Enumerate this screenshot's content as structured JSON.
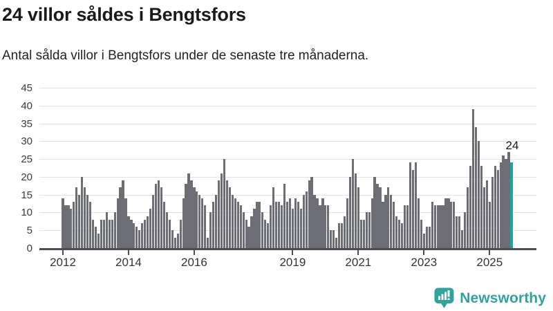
{
  "header": {
    "title": "24 villor såldes i Bengtsfors",
    "subtitle": "Antal sålda villor i Bengtsfors under de senaste tre månaderna."
  },
  "chart_data": {
    "type": "bar",
    "title": "24 villor såldes i Bengtsfors",
    "xlabel": "",
    "ylabel": "",
    "x_start_month": "2012-01",
    "x_frequency": "monthly",
    "values": [
      14,
      12,
      12,
      11,
      13,
      17,
      15,
      20,
      17,
      15,
      13,
      8,
      6,
      4,
      8,
      8,
      10,
      8,
      8,
      10,
      14,
      17,
      19,
      14,
      9,
      8,
      7,
      6,
      5,
      7,
      8,
      9,
      11,
      15,
      18,
      19,
      17,
      13,
      10,
      8,
      5,
      3,
      4,
      8,
      14,
      18,
      21,
      19,
      17,
      16,
      15,
      14,
      12,
      3,
      10,
      13,
      15,
      19,
      21,
      25,
      19,
      17,
      15,
      14,
      13,
      12,
      10,
      8,
      6,
      9,
      11,
      13,
      13,
      10,
      8,
      7,
      12,
      17,
      13,
      13,
      12,
      18,
      13,
      14,
      11,
      14,
      13,
      11,
      15,
      16,
      19,
      20,
      15,
      14,
      12,
      14,
      12,
      12,
      5,
      5,
      3,
      7,
      7,
      9,
      14,
      20,
      25,
      21,
      17,
      8,
      8,
      10,
      10,
      14,
      20,
      18,
      17,
      13,
      15,
      17,
      15,
      13,
      9,
      8,
      7,
      12,
      12,
      24,
      22,
      24,
      14,
      8,
      4,
      6,
      6,
      13,
      12,
      12,
      12,
      12,
      14,
      14,
      13,
      13,
      9,
      9,
      5,
      10,
      17,
      23,
      39,
      34,
      30,
      23,
      17,
      19,
      13,
      20,
      23,
      22,
      24,
      26,
      25,
      27,
      24
    ],
    "highlight_last_bar": true,
    "highlight_label": "24",
    "ylim": [
      0,
      45
    ],
    "yticks": [
      0,
      5,
      10,
      15,
      20,
      25,
      30,
      35,
      40,
      45
    ],
    "xticks": [
      {
        "label": "2012",
        "month_index": 0
      },
      {
        "label": "2014",
        "month_index": 24
      },
      {
        "label": "2016",
        "month_index": 48
      },
      {
        "label": "2019",
        "month_index": 84
      },
      {
        "label": "2021",
        "month_index": 108
      },
      {
        "label": "2023",
        "month_index": 132
      },
      {
        "label": "2025",
        "month_index": 156
      }
    ],
    "grid": true,
    "legend": "none",
    "colors": {
      "bar": "#6d6d76",
      "highlight": "#1aa69e",
      "axis": "#4c4c52",
      "grid": "#e4e4e4"
    }
  },
  "footer": {
    "brand": "Newsworthy",
    "brand_color": "#2fa39c",
    "logo_icon": "bar-chart-speech-bubble-icon"
  }
}
